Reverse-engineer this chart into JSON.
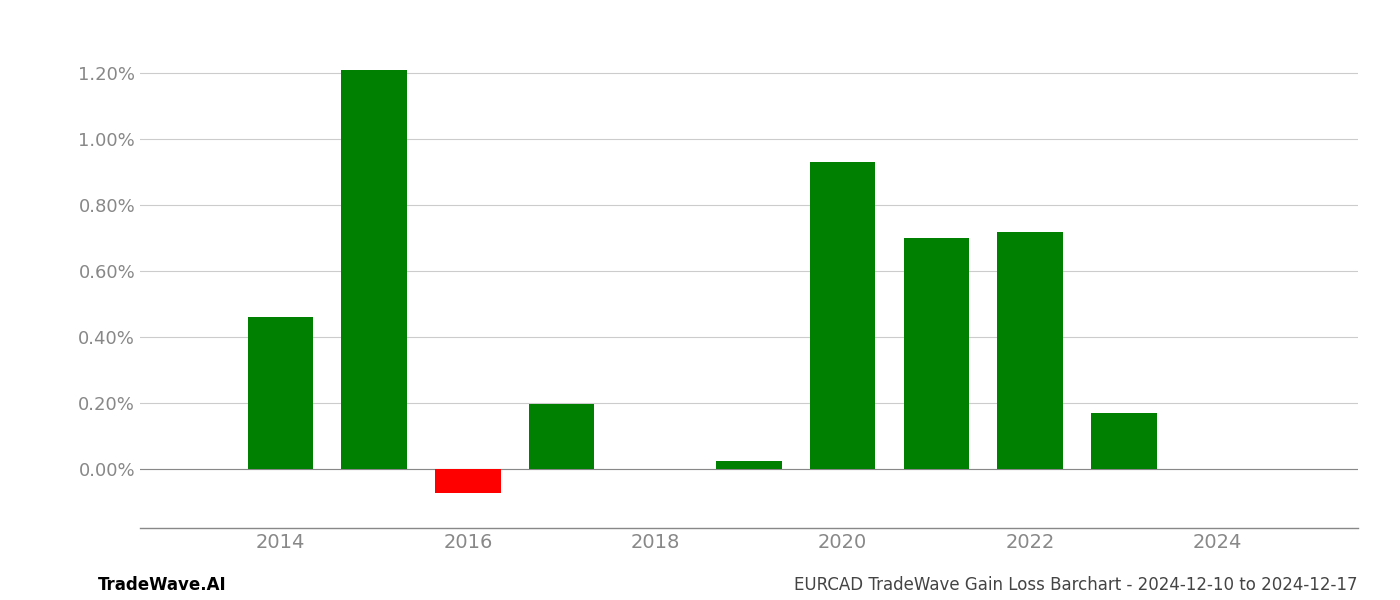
{
  "years": [
    2014,
    2015,
    2016,
    2017,
    2019,
    2020,
    2021,
    2022,
    2023
  ],
  "values": [
    0.0046,
    0.0121,
    -0.00075,
    0.00195,
    0.00022,
    0.0093,
    0.007,
    0.0072,
    0.0017
  ],
  "colors": [
    "#008000",
    "#008000",
    "#ff0000",
    "#008000",
    "#008000",
    "#008000",
    "#008000",
    "#008000",
    "#008000"
  ],
  "xlim": [
    2012.5,
    2025.5
  ],
  "ylim": [
    -0.0018,
    0.0135
  ],
  "yticks": [
    0.0,
    0.002,
    0.004,
    0.006,
    0.008,
    0.01,
    0.012
  ],
  "xtick_positions": [
    2014,
    2016,
    2018,
    2020,
    2022,
    2024
  ],
  "footer_left": "TradeWave.AI",
  "footer_right": "EURCAD TradeWave Gain Loss Barchart - 2024-12-10 to 2024-12-17",
  "bar_width": 0.7,
  "background_color": "#ffffff",
  "grid_color": "#cccccc",
  "axis_label_color": "#888888",
  "footer_color": "#444444"
}
